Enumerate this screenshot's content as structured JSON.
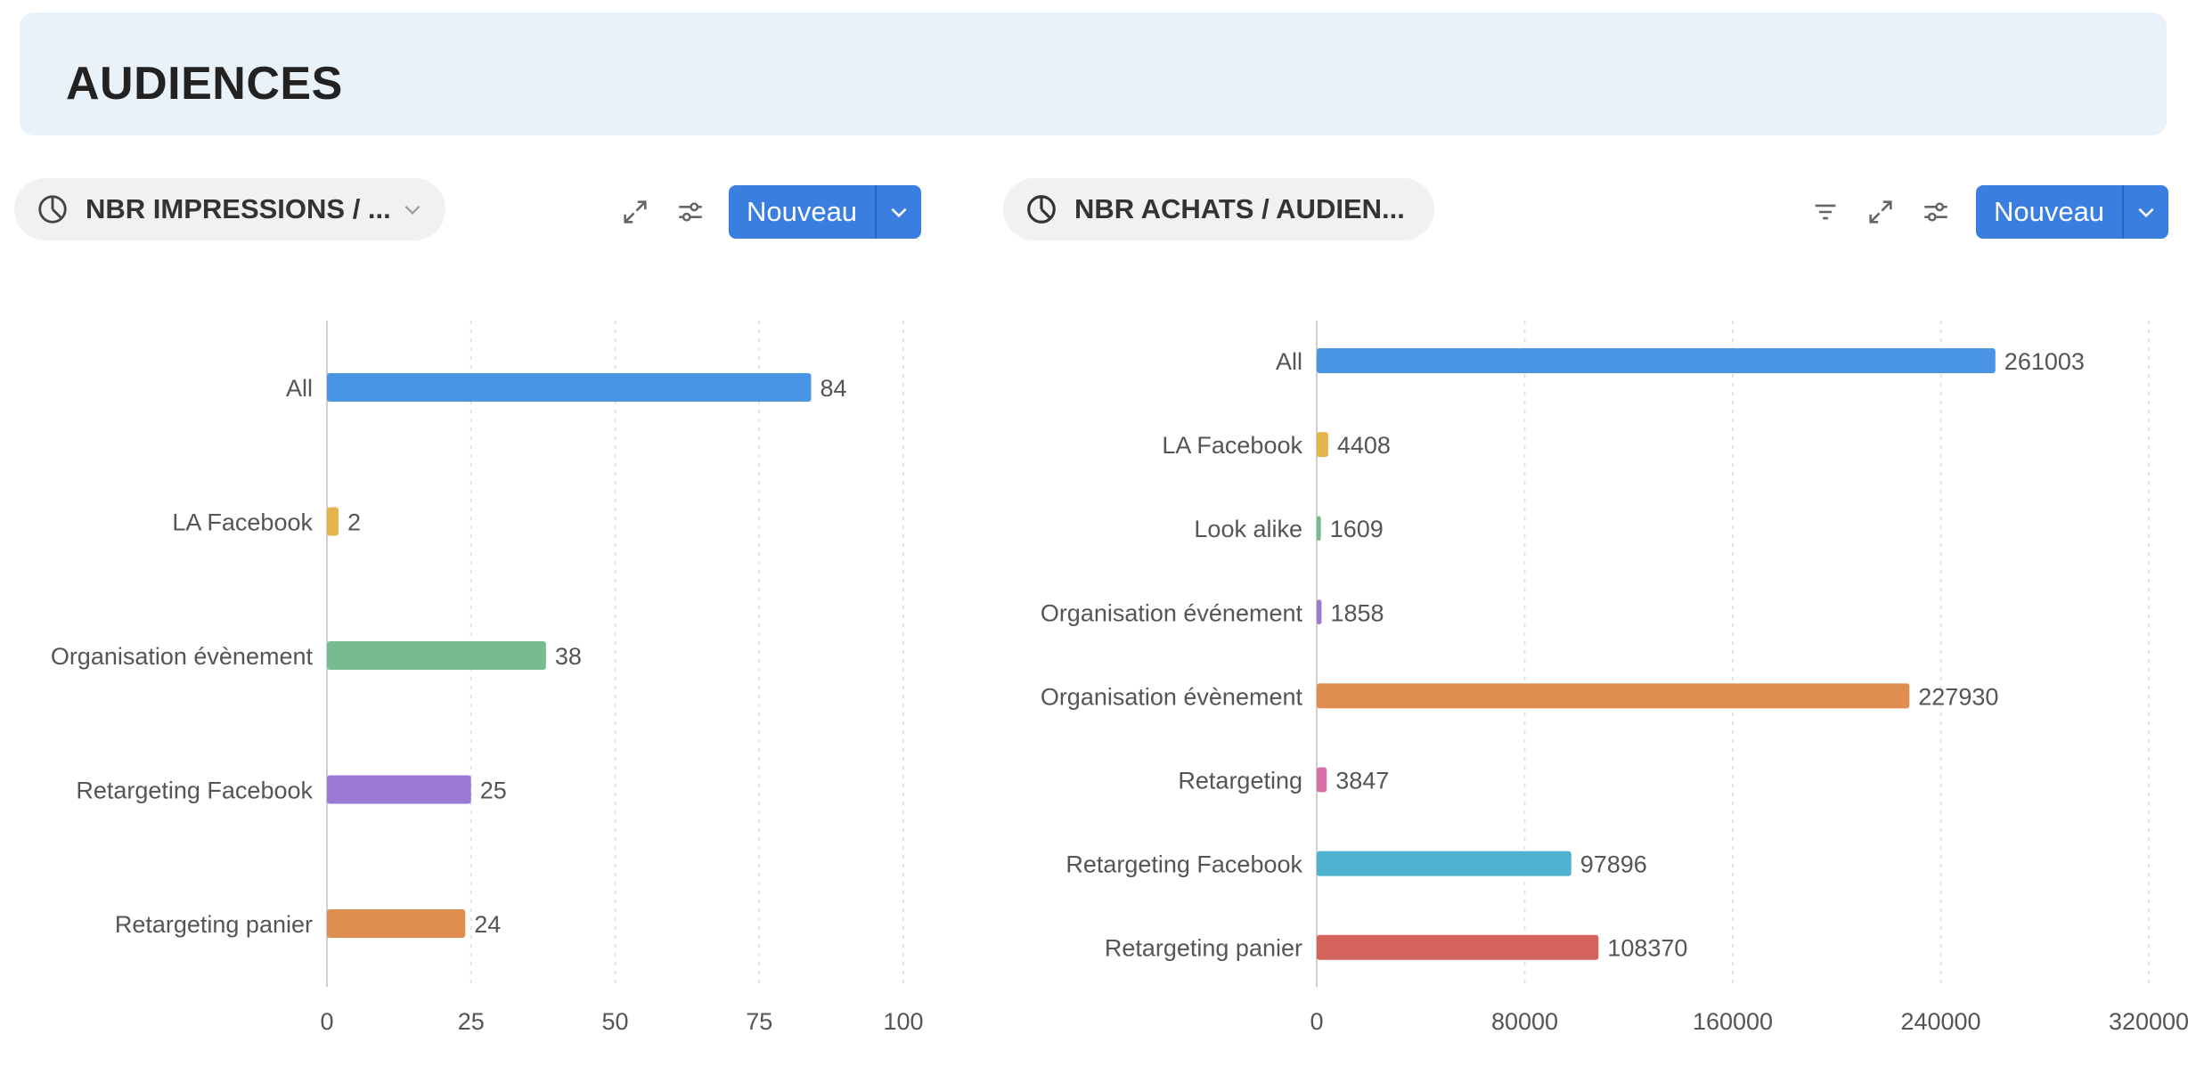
{
  "page_title": "AUDIENCES",
  "widgets": [
    {
      "title": "NBR IMPRESSIONS / ...",
      "new_label": "Nouveau"
    },
    {
      "title": "NBR ACHATS / AUDIEN...",
      "new_label": "Nouveau"
    }
  ],
  "chart_data": [
    {
      "type": "bar",
      "orientation": "horizontal",
      "categories": [
        "All",
        "LA Facebook",
        "Organisation évènement",
        "Retargeting Facebook",
        "Retargeting panier"
      ],
      "values": [
        84,
        2,
        38,
        25,
        24
      ],
      "colors": [
        "#4a94e6",
        "#e3b54a",
        "#77bc8f",
        "#9b7ad4",
        "#e08e4f"
      ],
      "xlim": [
        0,
        100
      ],
      "xticks": [
        0,
        25,
        50,
        75,
        100
      ],
      "grid": true
    },
    {
      "type": "bar",
      "orientation": "horizontal",
      "categories": [
        "All",
        "LA Facebook",
        "Look alike",
        "Organisation événement",
        "Organisation évènement",
        "Retargeting",
        "Retargeting Facebook",
        "Retargeting panier"
      ],
      "values": [
        261003,
        4408,
        1609,
        1858,
        227930,
        3847,
        97896,
        108370
      ],
      "colors": [
        "#4a94e6",
        "#e3b54a",
        "#77bc8f",
        "#9b7ad4",
        "#e08e4f",
        "#d86fa6",
        "#4fb2d0",
        "#d4625d"
      ],
      "xlim": [
        0,
        320000
      ],
      "xticks": [
        0,
        80000,
        160000,
        240000,
        320000
      ],
      "grid": true
    }
  ]
}
